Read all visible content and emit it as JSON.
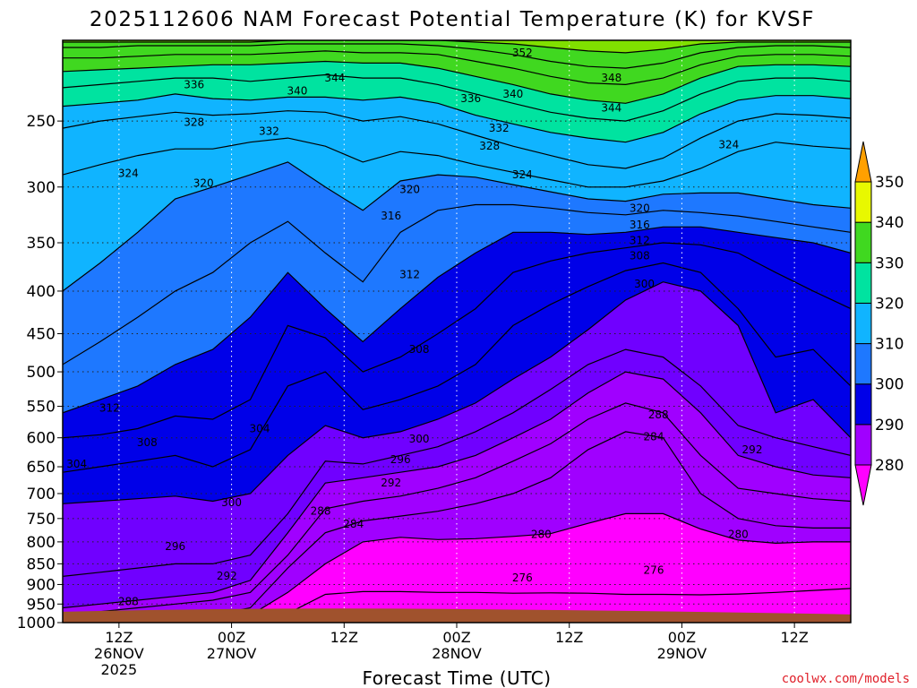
{
  "chart_data": {
    "type": "heatmap",
    "title": "2025112606 NAM Forecast Potential Temperature (K) for KVSF",
    "xlabel": "Forecast Time (UTC)",
    "ylabel": "",
    "credit": "coolwx.com/models",
    "y_axis": {
      "scale": "pressure",
      "ticks": [
        250,
        300,
        350,
        400,
        450,
        500,
        550,
        600,
        650,
        700,
        750,
        800,
        850,
        900,
        950,
        1000
      ],
      "ylim": [
        200,
        1000
      ]
    },
    "x_axis": {
      "ticks": [
        {
          "hour": 6,
          "line1": "12Z",
          "line2": "26NOV",
          "line3": "2025"
        },
        {
          "hour": 18,
          "line1": "00Z",
          "line2": "27NOV",
          "line3": ""
        },
        {
          "hour": 30,
          "line1": "12Z",
          "line2": "",
          "line3": ""
        },
        {
          "hour": 42,
          "line1": "00Z",
          "line2": "28NOV",
          "line3": ""
        },
        {
          "hour": 54,
          "line1": "12Z",
          "line2": "",
          "line3": ""
        },
        {
          "hour": 66,
          "line1": "00Z",
          "line2": "29NOV",
          "line3": ""
        },
        {
          "hour": 78,
          "line1": "12Z",
          "line2": "",
          "line3": ""
        }
      ],
      "xlim": [
        0,
        84
      ]
    },
    "colorbar": {
      "levels": [
        280,
        290,
        300,
        310,
        320,
        330,
        340,
        350
      ],
      "colors": [
        "#ff00ff",
        "#a000ff",
        "#7000ff",
        "#0000e8",
        "#1e78ff",
        "#10b4ff",
        "#00e3a0",
        "#40d820",
        "#80e000",
        "#e8f800",
        "#ffa000"
      ]
    },
    "legend_placement": "right",
    "grid": true,
    "ground_color": "#a0522d",
    "contour_levels": [
      276,
      280,
      284,
      288,
      292,
      296,
      300,
      304,
      308,
      312,
      316,
      320,
      324,
      328,
      332,
      336,
      340,
      344,
      348,
      352
    ],
    "isentropes": [
      {
        "theta": 276,
        "p": [
          1000,
          1000,
          1000,
          1000,
          1000,
          990,
          975,
          925,
          918,
          918,
          920,
          920,
          922,
          921,
          922,
          925,
          925,
          926,
          924,
          920,
          915,
          910
        ]
      },
      {
        "theta": 280,
        "p": [
          1000,
          1000,
          1000,
          1000,
          1000,
          980,
          920,
          850,
          800,
          790,
          795,
          793,
          788,
          782,
          760,
          740,
          740,
          772,
          796,
          803,
          800,
          800
        ]
      },
      {
        "theta": 284,
        "p": [
          1000,
          1000,
          1000,
          990,
          980,
          960,
          860,
          780,
          755,
          745,
          735,
          720,
          700,
          670,
          620,
          590,
          600,
          700,
          750,
          765,
          770,
          770
        ]
      },
      {
        "theta": 288,
        "p": [
          985,
          970,
          960,
          950,
          940,
          920,
          830,
          730,
          715,
          705,
          690,
          670,
          640,
          610,
          570,
          545,
          560,
          630,
          690,
          700,
          710,
          715
        ]
      },
      {
        "theta": 292,
        "p": [
          960,
          950,
          940,
          930,
          920,
          890,
          780,
          680,
          670,
          660,
          650,
          630,
          600,
          570,
          530,
          500,
          510,
          560,
          630,
          650,
          665,
          670
        ]
      },
      {
        "theta": 296,
        "p": [
          880,
          870,
          860,
          850,
          850,
          830,
          740,
          640,
          645,
          630,
          615,
          590,
          560,
          525,
          490,
          470,
          480,
          520,
          580,
          600,
          615,
          630
        ]
      },
      {
        "theta": 300,
        "p": [
          720,
          715,
          710,
          705,
          715,
          700,
          630,
          580,
          600,
          590,
          570,
          545,
          510,
          480,
          445,
          410,
          390,
          400,
          440,
          560,
          540,
          600
        ]
      },
      {
        "theta": 304,
        "p": [
          660,
          650,
          640,
          630,
          650,
          620,
          520,
          500,
          555,
          540,
          520,
          490,
          440,
          415,
          395,
          378,
          370,
          380,
          420,
          480,
          470,
          520
        ]
      },
      {
        "theta": 308,
        "p": [
          600,
          595,
          585,
          565,
          570,
          540,
          440,
          455,
          500,
          480,
          450,
          420,
          380,
          368,
          360,
          355,
          350,
          352,
          360,
          380,
          400,
          420
        ]
      },
      {
        "theta": 312,
        "p": [
          560,
          540,
          520,
          490,
          470,
          430,
          380,
          420,
          460,
          420,
          385,
          360,
          340,
          340,
          342,
          340,
          335,
          335,
          340,
          345,
          350,
          360
        ]
      },
      {
        "theta": 316,
        "p": [
          490,
          460,
          430,
          400,
          380,
          350,
          330,
          360,
          390,
          340,
          320,
          315,
          315,
          318,
          322,
          324,
          320,
          322,
          325,
          330,
          335,
          340
        ]
      },
      {
        "theta": 320,
        "p": [
          400,
          370,
          340,
          310,
          300,
          290,
          280,
          300,
          320,
          295,
          290,
          292,
          298,
          304,
          310,
          312,
          306,
          305,
          305,
          310,
          315,
          318
        ]
      },
      {
        "theta": 324,
        "p": [
          290,
          282,
          275,
          270,
          270,
          265,
          262,
          268,
          280,
          272,
          275,
          282,
          288,
          294,
          300,
          300,
          295,
          285,
          272,
          265,
          268,
          270
        ]
      },
      {
        "theta": 328,
        "p": [
          255,
          250,
          247,
          244,
          246,
          245,
          243,
          244,
          250,
          247,
          252,
          260,
          268,
          275,
          282,
          285,
          277,
          262,
          250,
          245,
          246,
          248
        ]
      },
      {
        "theta": 332,
        "p": [
          240,
          238,
          236,
          232,
          235,
          236,
          234,
          234,
          236,
          234,
          238,
          246,
          252,
          258,
          262,
          265,
          258,
          245,
          236,
          233,
          233,
          235
        ]
      },
      {
        "theta": 336,
        "p": [
          228,
          226,
          224,
          222,
          222,
          224,
          222,
          220,
          222,
          222,
          226,
          232,
          238,
          244,
          248,
          250,
          243,
          232,
          224,
          222,
          222,
          224
        ]
      },
      {
        "theta": 340,
        "p": [
          218,
          217,
          216,
          215,
          214,
          214,
          213,
          212,
          213,
          213,
          216,
          221,
          226,
          232,
          236,
          238,
          232,
          222,
          215,
          214,
          214,
          215
        ]
      },
      {
        "theta": 344,
        "p": [
          210,
          210,
          209,
          208,
          208,
          208,
          207,
          206,
          207,
          207,
          208,
          212,
          216,
          221,
          225,
          226,
          222,
          214,
          209,
          208,
          208,
          209
        ]
      },
      {
        "theta": 348,
        "p": [
          204,
          204,
          203,
          203,
          203,
          203,
          202,
          202,
          202,
          202,
          203,
          205,
          208,
          212,
          215,
          216,
          213,
          207,
          204,
          203,
          203,
          204
        ]
      },
      {
        "theta": 352,
        "p": [
          201,
          201,
          201,
          201,
          201,
          201,
          200,
          200,
          200,
          200,
          200,
          201,
          202,
          204,
          206,
          207,
          205,
          202,
          201,
          201,
          201,
          201
        ]
      }
    ],
    "contour_labels": [
      {
        "theta": 352,
        "hour": 49,
        "p": 207
      },
      {
        "theta": 348,
        "hour": 58.5,
        "p": 222
      },
      {
        "theta": 344,
        "hour": 29,
        "p": 222
      },
      {
        "theta": 344,
        "hour": 58.5,
        "p": 241
      },
      {
        "theta": 340,
        "hour": 25,
        "p": 230
      },
      {
        "theta": 340,
        "hour": 48,
        "p": 232
      },
      {
        "theta": 336,
        "hour": 14,
        "p": 226
      },
      {
        "theta": 336,
        "hour": 43.5,
        "p": 235
      },
      {
        "theta": 332,
        "hour": 22,
        "p": 257
      },
      {
        "theta": 332,
        "hour": 46.5,
        "p": 255
      },
      {
        "theta": 328,
        "hour": 14,
        "p": 251
      },
      {
        "theta": 328,
        "hour": 45.5,
        "p": 268
      },
      {
        "theta": 324,
        "hour": 7,
        "p": 289
      },
      {
        "theta": 324,
        "hour": 49,
        "p": 290
      },
      {
        "theta": 324,
        "hour": 71,
        "p": 267
      },
      {
        "theta": 320,
        "hour": 15,
        "p": 297
      },
      {
        "theta": 320,
        "hour": 37,
        "p": 302
      },
      {
        "theta": 320,
        "hour": 61.5,
        "p": 318
      },
      {
        "theta": 316,
        "hour": 35,
        "p": 325
      },
      {
        "theta": 316,
        "hour": 61.5,
        "p": 333
      },
      {
        "theta": 312,
        "hour": 37,
        "p": 382
      },
      {
        "theta": 312,
        "hour": 61.5,
        "p": 348
      },
      {
        "theta": 312,
        "hour": 5,
        "p": 553
      },
      {
        "theta": 308,
        "hour": 61.5,
        "p": 363
      },
      {
        "theta": 308,
        "hour": 38,
        "p": 470
      },
      {
        "theta": 308,
        "hour": 9,
        "p": 608
      },
      {
        "theta": 304,
        "hour": 21,
        "p": 585
      },
      {
        "theta": 304,
        "hour": 1.5,
        "p": 645
      },
      {
        "theta": 300,
        "hour": 62,
        "p": 392
      },
      {
        "theta": 300,
        "hour": 38,
        "p": 602
      },
      {
        "theta": 300,
        "hour": 18,
        "p": 718
      },
      {
        "theta": 296,
        "hour": 36,
        "p": 637
      },
      {
        "theta": 296,
        "hour": 12,
        "p": 810
      },
      {
        "theta": 292,
        "hour": 35,
        "p": 680
      },
      {
        "theta": 292,
        "hour": 17.5,
        "p": 879
      },
      {
        "theta": 292,
        "hour": 73.5,
        "p": 620
      },
      {
        "theta": 288,
        "hour": 27.5,
        "p": 735
      },
      {
        "theta": 288,
        "hour": 63.5,
        "p": 563
      },
      {
        "theta": 288,
        "hour": 7,
        "p": 943
      },
      {
        "theta": 284,
        "hour": 31,
        "p": 762
      },
      {
        "theta": 284,
        "hour": 63,
        "p": 598
      },
      {
        "theta": 280,
        "hour": 51,
        "p": 784
      },
      {
        "theta": 280,
        "hour": 72,
        "p": 784
      },
      {
        "theta": 276,
        "hour": 49,
        "p": 884
      },
      {
        "theta": 276,
        "hour": 63,
        "p": 865
      }
    ]
  }
}
